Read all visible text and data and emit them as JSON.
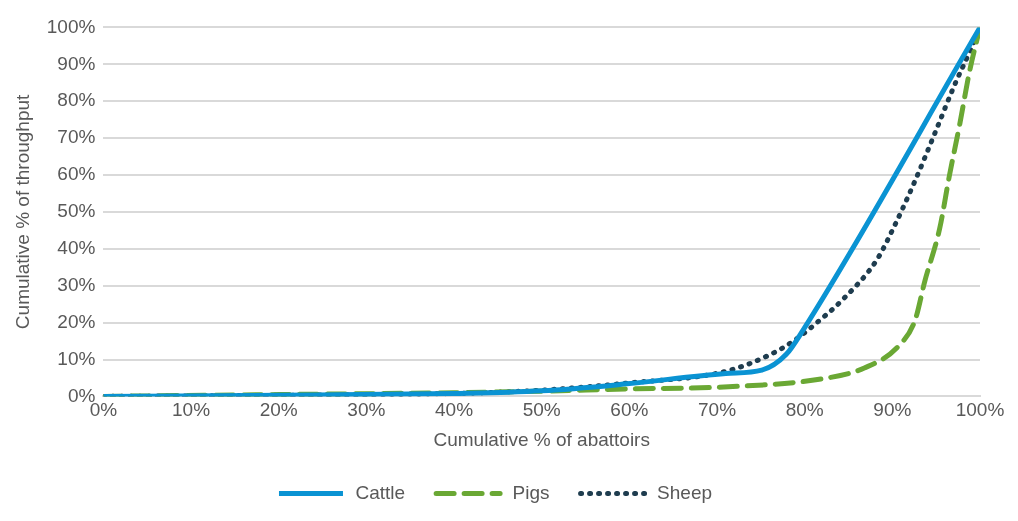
{
  "chart_data": {
    "type": "line",
    "xlabel": "Cumulative % of abattoirs",
    "ylabel": "Cumulative % of throughput",
    "xlim": [
      0,
      100
    ],
    "ylim": [
      0,
      100
    ],
    "xticks": [
      {
        "value": 0,
        "label": "0%"
      },
      {
        "value": 10,
        "label": "10%"
      },
      {
        "value": 20,
        "label": "20%"
      },
      {
        "value": 30,
        "label": "30%"
      },
      {
        "value": 40,
        "label": "40%"
      },
      {
        "value": 50,
        "label": "50%"
      },
      {
        "value": 60,
        "label": "60%"
      },
      {
        "value": 70,
        "label": "70%"
      },
      {
        "value": 80,
        "label": "80%"
      },
      {
        "value": 90,
        "label": "90%"
      },
      {
        "value": 100,
        "label": "100%"
      }
    ],
    "yticks": [
      {
        "value": 0,
        "label": "0%"
      },
      {
        "value": 10,
        "label": "10%"
      },
      {
        "value": 20,
        "label": "20%"
      },
      {
        "value": 30,
        "label": "30%"
      },
      {
        "value": 40,
        "label": "40%"
      },
      {
        "value": 50,
        "label": "50%"
      },
      {
        "value": 60,
        "label": "60%"
      },
      {
        "value": 70,
        "label": "70%"
      },
      {
        "value": 80,
        "label": "80%"
      },
      {
        "value": 90,
        "label": "90%"
      },
      {
        "value": 100,
        "label": "100%"
      }
    ],
    "grid": "y",
    "legend": "bottom",
    "marker": "none",
    "series": [
      {
        "name": "Cattle",
        "color": "#0a93d3",
        "line_style": "solid",
        "x": [
          0,
          20,
          40,
          50,
          59.7,
          71,
          75.1,
          77.9,
          79.8,
          100
        ],
        "values": [
          0,
          0.3,
          0.8,
          1.5,
          3.4,
          6.2,
          7.1,
          11.4,
          17.9,
          100
        ]
      },
      {
        "name": "Pigs",
        "color": "#6aa834",
        "line_style": "dashed",
        "x": [
          0,
          20,
          40,
          50,
          59.7,
          71.3,
          82.1,
          86.8,
          90.7,
          92.6,
          93.7,
          95.4,
          96.5,
          97.7,
          98.8,
          100
        ],
        "values": [
          0,
          0.5,
          1,
          1.4,
          2,
          2.6,
          4.8,
          7.7,
          13.6,
          20.7,
          31.2,
          45.5,
          59.7,
          73.9,
          88,
          100
        ]
      },
      {
        "name": "Sheep",
        "color": "#1f3d4f",
        "line_style": "dotted",
        "x": [
          0,
          20,
          40,
          50,
          59.7,
          71,
          76.3,
          78.9,
          81.2,
          84.4,
          88.2,
          90.2,
          92.6,
          94.9,
          97.1,
          98.9,
          100
        ],
        "values": [
          0,
          0.3,
          0.8,
          1.7,
          3.6,
          6.8,
          11.6,
          15.3,
          19.6,
          26.4,
          36.9,
          46,
          58.5,
          71.6,
          84.4,
          93.8,
          100
        ]
      }
    ]
  }
}
